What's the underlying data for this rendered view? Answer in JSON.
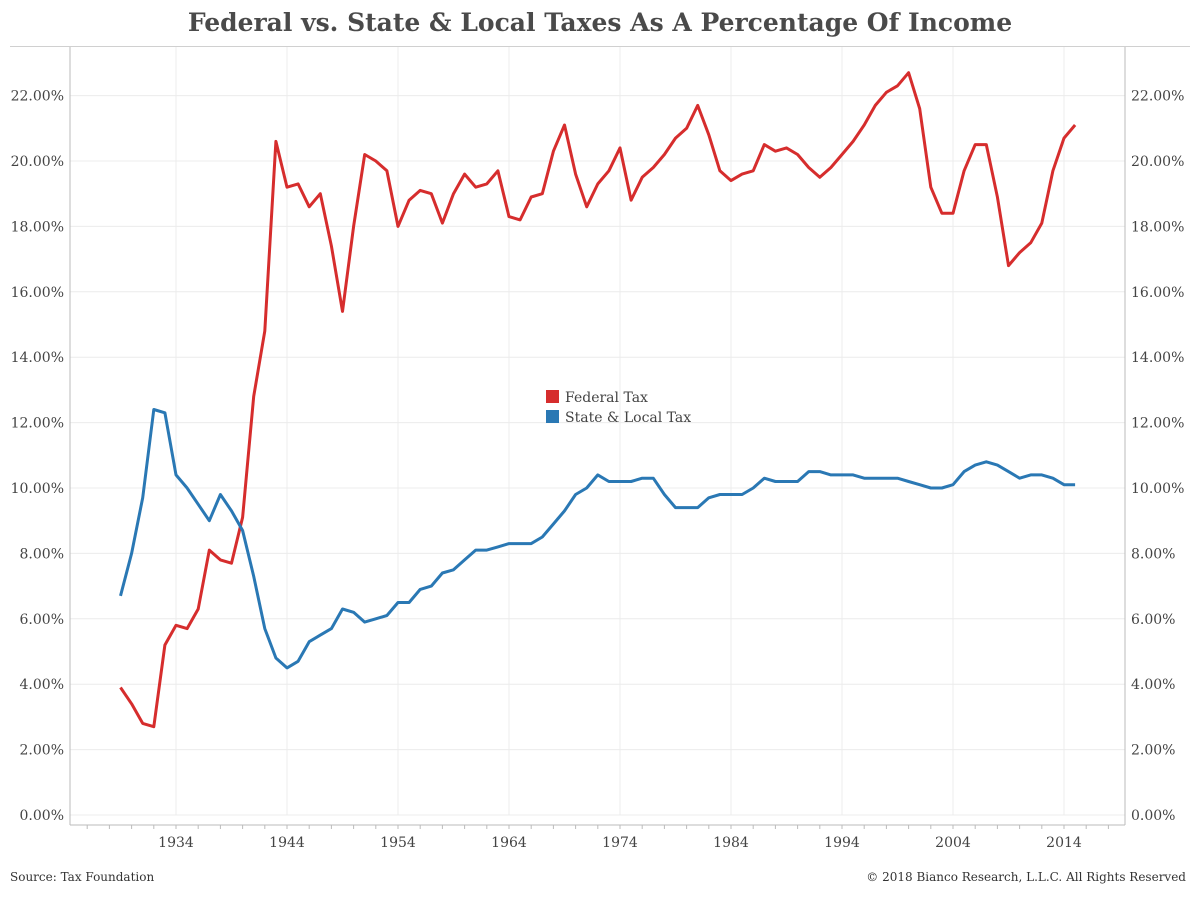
{
  "title": "Federal vs. State & Local Taxes As A Percentage Of Income",
  "footer": {
    "source": "Source: Tax Foundation",
    "copyright": "© 2018 Bianco Research, L.L.C. All Rights Reserved"
  },
  "colors": {
    "federal": "#d62d2d",
    "state_local": "#2a78b4",
    "grid": "#ececec",
    "axis": "#bbbbbb"
  },
  "chart_data": {
    "type": "line",
    "title": "Federal vs. State & Local Taxes As A Percentage Of Income",
    "ylim": [
      0,
      23
    ],
    "xlim": [
      1925,
      2020
    ],
    "y_ticks": [
      "0.00%",
      "2.00%",
      "4.00%",
      "6.00%",
      "8.00%",
      "10.00%",
      "12.00%",
      "14.00%",
      "16.00%",
      "18.00%",
      "20.00%",
      "22.00%"
    ],
    "y_tick_values": [
      0,
      2,
      4,
      6,
      8,
      10,
      12,
      14,
      16,
      18,
      20,
      22
    ],
    "x_ticks": [
      "1934",
      "1944",
      "1954",
      "1964",
      "1974",
      "1984",
      "1994",
      "2004",
      "2014"
    ],
    "x_tick_values": [
      1934,
      1944,
      1954,
      1964,
      1974,
      1984,
      1994,
      2004,
      2014
    ],
    "grid": true,
    "legend_position": "center",
    "x": [
      1929,
      1930,
      1931,
      1932,
      1933,
      1934,
      1935,
      1936,
      1937,
      1938,
      1939,
      1940,
      1941,
      1942,
      1943,
      1944,
      1945,
      1946,
      1947,
      1948,
      1949,
      1950,
      1951,
      1952,
      1953,
      1954,
      1955,
      1956,
      1957,
      1958,
      1959,
      1960,
      1961,
      1962,
      1963,
      1964,
      1965,
      1966,
      1967,
      1968,
      1969,
      1970,
      1971,
      1972,
      1973,
      1974,
      1975,
      1976,
      1977,
      1978,
      1979,
      1980,
      1981,
      1982,
      1983,
      1984,
      1985,
      1986,
      1987,
      1988,
      1989,
      1990,
      1991,
      1992,
      1993,
      1994,
      1995,
      1996,
      1997,
      1998,
      1999,
      2000,
      2001,
      2002,
      2003,
      2004,
      2005,
      2006,
      2007,
      2008,
      2009,
      2010,
      2011,
      2012,
      2013,
      2014,
      2015
    ],
    "series": [
      {
        "name": "Federal Tax",
        "color": "#d62d2d",
        "values": [
          3.9,
          3.4,
          2.8,
          2.7,
          5.2,
          5.8,
          5.7,
          6.3,
          8.1,
          7.8,
          7.7,
          9.1,
          12.8,
          14.8,
          20.6,
          19.2,
          19.3,
          18.6,
          19.0,
          17.4,
          15.4,
          18.0,
          20.2,
          20.0,
          19.7,
          18.0,
          18.8,
          19.1,
          19.0,
          18.1,
          19.0,
          19.6,
          19.2,
          19.3,
          19.7,
          18.3,
          18.2,
          18.9,
          19.0,
          20.3,
          21.1,
          19.6,
          18.6,
          19.3,
          19.7,
          20.4,
          18.8,
          19.5,
          19.8,
          20.2,
          20.7,
          21.0,
          21.7,
          20.8,
          19.7,
          19.4,
          19.6,
          19.7,
          20.5,
          20.3,
          20.4,
          20.2,
          19.8,
          19.5,
          19.8,
          20.2,
          20.6,
          21.1,
          21.7,
          22.1,
          22.3,
          22.7,
          21.6,
          19.2,
          18.4,
          18.4,
          19.7,
          20.5,
          20.5,
          18.9,
          16.8,
          17.2,
          17.5,
          18.1,
          19.7,
          20.7,
          21.1
        ]
      },
      {
        "name": "State & Local Tax",
        "color": "#2a78b4",
        "values": [
          6.7,
          8.0,
          9.7,
          12.4,
          12.3,
          10.4,
          10.0,
          9.5,
          9.0,
          9.8,
          9.3,
          8.7,
          7.3,
          5.7,
          4.8,
          4.5,
          4.7,
          5.3,
          5.5,
          5.7,
          6.3,
          6.2,
          5.9,
          6.0,
          6.1,
          6.5,
          6.5,
          6.9,
          7.0,
          7.4,
          7.5,
          7.8,
          8.1,
          8.1,
          8.2,
          8.3,
          8.3,
          8.3,
          8.5,
          8.9,
          9.3,
          9.8,
          10.0,
          10.4,
          10.2,
          10.2,
          10.2,
          10.3,
          10.3,
          9.8,
          9.4,
          9.4,
          9.4,
          9.7,
          9.8,
          9.8,
          9.8,
          10.0,
          10.3,
          10.2,
          10.2,
          10.2,
          10.5,
          10.5,
          10.4,
          10.4,
          10.4,
          10.3,
          10.3,
          10.3,
          10.3,
          10.2,
          10.1,
          10.0,
          10.0,
          10.1,
          10.5,
          10.7,
          10.8,
          10.7,
          10.5,
          10.3,
          10.4,
          10.4,
          10.3,
          10.1,
          10.1
        ]
      }
    ]
  }
}
